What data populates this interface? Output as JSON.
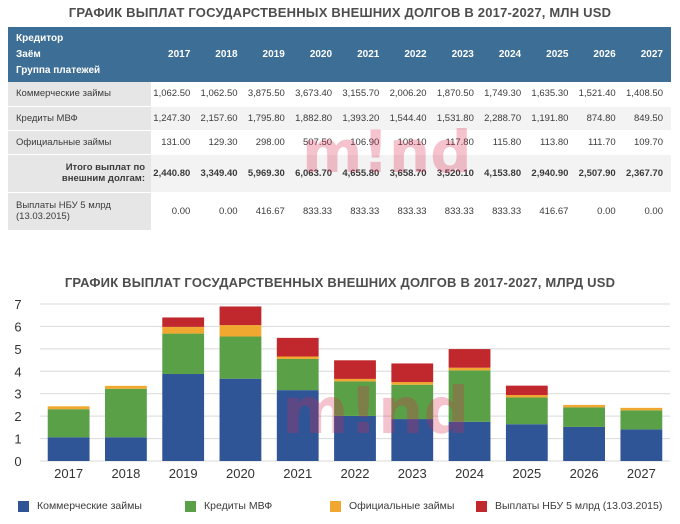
{
  "table_title": "ГРАФИК ВЫПЛАТ ГОСУДАРСТВЕННЫХ ВНЕШНИХ ДОЛГОВ В 2017-2027, МЛН USD",
  "chart_title": "ГРАФИК ВЫПЛАТ ГОСУДАРСТВЕННЫХ ВНЕШНИХ ДОЛГОВ В 2017-2027, МЛРД USD",
  "watermark": "m!nd",
  "table": {
    "header_lines": [
      "Кредитор",
      "Заём",
      "Группа платежей"
    ],
    "years": [
      "2017",
      "2018",
      "2019",
      "2020",
      "2021",
      "2022",
      "2023",
      "2024",
      "2025",
      "2026",
      "2027"
    ],
    "rows": [
      {
        "label": "Коммерческие займы",
        "values": [
          "1,062.50",
          "1,062.50",
          "3,875.50",
          "3,673.40",
          "3,155.70",
          "2,006.20",
          "1,870.50",
          "1,749.30",
          "1,635.30",
          "1,521.40",
          "1,408.50"
        ]
      },
      {
        "label": "Кредиты МВФ",
        "values": [
          "1,247.30",
          "2,157.60",
          "1,795.80",
          "1,882.80",
          "1,393.20",
          "1,544.40",
          "1,531.80",
          "2,288.70",
          "1,191.80",
          "874.80",
          "849.50"
        ]
      },
      {
        "label": "Официальные займы",
        "values": [
          "131.00",
          "129.30",
          "298.00",
          "507.50",
          "106.90",
          "108.10",
          "117.80",
          "115.80",
          "113.80",
          "111.70",
          "109.70"
        ]
      },
      {
        "label_lines": [
          "Итого выплат по",
          "внешним долгам:"
        ],
        "values": [
          "2,440.80",
          "3,349.40",
          "5,969.30",
          "6,063.70",
          "4,655.80",
          "3,658.70",
          "3,520.10",
          "4,153.80",
          "2,940.90",
          "2,507.90",
          "2,367.70"
        ],
        "total": true
      },
      {
        "label_lines": [
          "Выплаты НБУ 5 млрд",
          "(13.03.2015)"
        ],
        "values": [
          "0.00",
          "0.00",
          "416.67",
          "833.33",
          "833.33",
          "833.33",
          "833.33",
          "833.33",
          "416.67",
          "0.00",
          "0.00"
        ]
      }
    ]
  },
  "chart_data": {
    "type": "bar",
    "stacked": true,
    "categories": [
      "2017",
      "2018",
      "2019",
      "2020",
      "2021",
      "2022",
      "2023",
      "2024",
      "2025",
      "2026",
      "2027"
    ],
    "ylim": [
      0,
      7
    ],
    "yticks": [
      "0",
      "1",
      "2",
      "3",
      "4",
      "5",
      "6",
      "7"
    ],
    "grid": true,
    "legend_position": "bottom",
    "series": [
      {
        "name": "Коммерческие займы",
        "color": "#2f5597",
        "values": [
          1.06,
          1.06,
          3.88,
          3.67,
          3.16,
          2.01,
          1.87,
          1.75,
          1.64,
          1.52,
          1.41
        ]
      },
      {
        "name": "Кредиты МВФ",
        "color": "#5aa046",
        "values": [
          1.25,
          2.16,
          1.8,
          1.88,
          1.39,
          1.54,
          1.53,
          2.29,
          1.19,
          0.87,
          0.85
        ]
      },
      {
        "name": "Официальные займы",
        "color": "#f0a830",
        "values": [
          0.13,
          0.13,
          0.3,
          0.51,
          0.11,
          0.11,
          0.12,
          0.12,
          0.11,
          0.11,
          0.11
        ]
      },
      {
        "name": "Выплаты НБУ 5 млрд (13.03.2015)",
        "color": "#c0282d",
        "values": [
          0,
          0,
          0.42,
          0.83,
          0.83,
          0.83,
          0.83,
          0.83,
          0.42,
          0,
          0
        ]
      }
    ]
  }
}
